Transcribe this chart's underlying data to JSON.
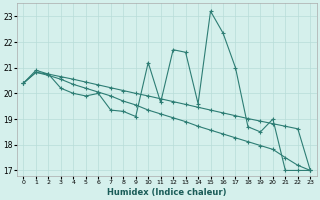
{
  "xlabel": "Humidex (Indice chaleur)",
  "bg_color": "#d5f0ec",
  "grid_color": "#b8ddd8",
  "line_color": "#2d7d74",
  "xlim": [
    -0.5,
    23.5
  ],
  "ylim": [
    16.8,
    23.5
  ],
  "yticks": [
    17,
    18,
    19,
    20,
    21,
    22,
    23
  ],
  "xticks": [
    0,
    1,
    2,
    3,
    4,
    5,
    6,
    7,
    8,
    9,
    10,
    11,
    12,
    13,
    14,
    15,
    16,
    17,
    18,
    19,
    20,
    21,
    22,
    23
  ],
  "series1_x": [
    0,
    1,
    2,
    3,
    4,
    5,
    6,
    7,
    8,
    9,
    10,
    11,
    12,
    13,
    14,
    15,
    16,
    17,
    18,
    19,
    20,
    21,
    22,
    23
  ],
  "series1_y": [
    20.4,
    20.9,
    20.75,
    20.2,
    20.0,
    19.9,
    20.0,
    19.35,
    19.3,
    19.1,
    21.2,
    19.65,
    21.7,
    21.6,
    19.6,
    23.2,
    22.35,
    21.0,
    18.7,
    18.5,
    19.0,
    17.0,
    17.0,
    17.0
  ],
  "series2_x": [
    0,
    1,
    2,
    3,
    4,
    5,
    6,
    7,
    8,
    9,
    10,
    11,
    12,
    13,
    14,
    15,
    16,
    17,
    18,
    19,
    20,
    21,
    22,
    23
  ],
  "series2_y": [
    20.4,
    20.82,
    20.75,
    20.65,
    20.55,
    20.44,
    20.33,
    20.22,
    20.11,
    20.0,
    19.9,
    19.79,
    19.68,
    19.57,
    19.46,
    19.35,
    19.24,
    19.13,
    19.02,
    18.92,
    18.82,
    18.72,
    18.62,
    17.0
  ],
  "series3_x": [
    0,
    1,
    2,
    3,
    4,
    5,
    6,
    7,
    8,
    9,
    10,
    11,
    12,
    13,
    14,
    15,
    16,
    17,
    18,
    19,
    20,
    21,
    22,
    23
  ],
  "series3_y": [
    20.4,
    20.82,
    20.7,
    20.55,
    20.35,
    20.2,
    20.05,
    19.9,
    19.7,
    19.55,
    19.35,
    19.2,
    19.05,
    18.9,
    18.72,
    18.57,
    18.42,
    18.27,
    18.12,
    17.97,
    17.82,
    17.5,
    17.2,
    17.0
  ]
}
